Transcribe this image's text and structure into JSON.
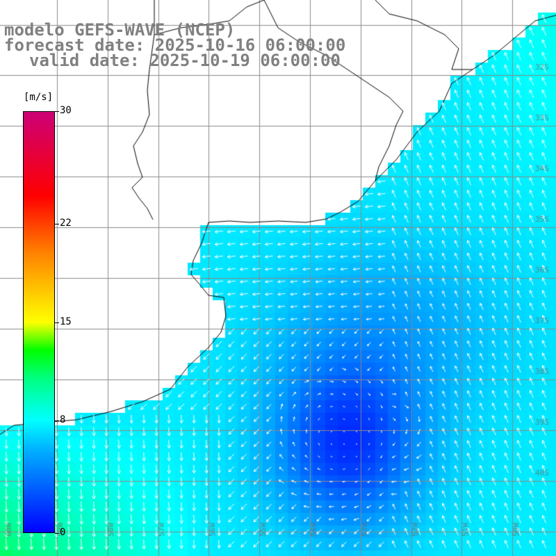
{
  "header": {
    "line1": "modelo GEFS-WAVE (NCEP)",
    "line2": "forecast date: 2025-10-16 06:00:00",
    "line3": "valid date: 2025-10-19 06:00:00"
  },
  "colorbar": {
    "units": "[m/s]",
    "min": 0,
    "max": 30,
    "ticks": [
      {
        "value": 30,
        "label": "30"
      },
      {
        "value": 22,
        "label": "22"
      },
      {
        "value": 15,
        "label": "15"
      },
      {
        "value": 8,
        "label": "8"
      },
      {
        "value": 0,
        "label": "0"
      }
    ],
    "stops": [
      {
        "value": 0,
        "color": "#0000ff"
      },
      {
        "value": 6,
        "color": "#00b4ff"
      },
      {
        "value": 8,
        "color": "#00ffff"
      },
      {
        "value": 11,
        "color": "#00ff80"
      },
      {
        "value": 13,
        "color": "#00ff00"
      },
      {
        "value": 15,
        "color": "#ffff00"
      },
      {
        "value": 20,
        "color": "#ff8000"
      },
      {
        "value": 24,
        "color": "#ff0000"
      },
      {
        "value": 30,
        "color": "#cc0077"
      }
    ]
  },
  "map": {
    "lat_labels": [
      "32S",
      "33S",
      "34S",
      "35S",
      "36S",
      "37S",
      "38S",
      "39S",
      "40S"
    ],
    "lon_labels": [
      "60W",
      "59W",
      "58W",
      "57W",
      "56W",
      "55W",
      "54W",
      "53W",
      "52W",
      "51W",
      "50W"
    ],
    "land_color": "#ffffff",
    "grid_color": "#8a8a8a",
    "coast_color": "#000000",
    "arrow_color": "#ffffff"
  }
}
